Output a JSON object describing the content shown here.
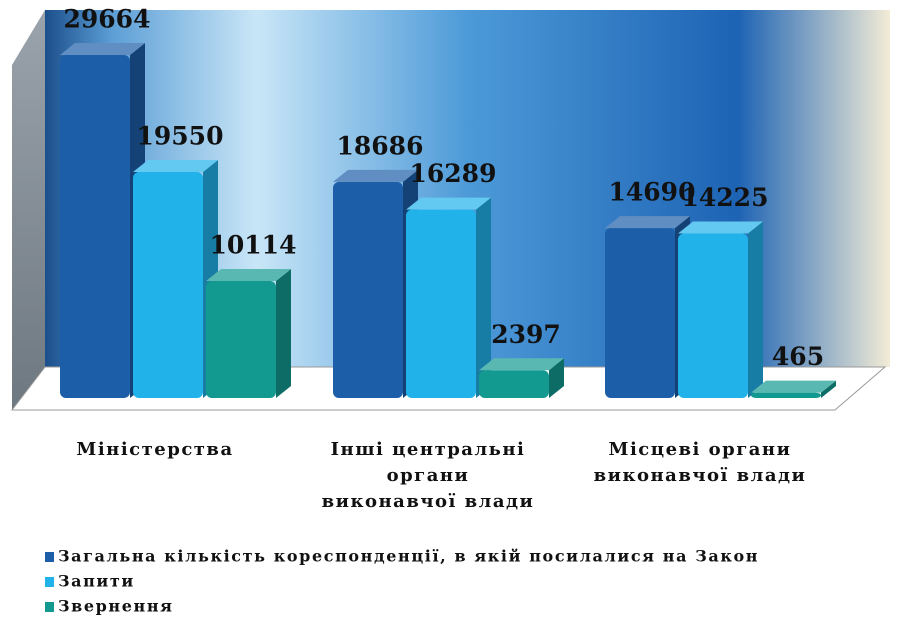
{
  "chart_data": {
    "type": "bar3d",
    "categories": [
      [
        "Міністерства"
      ],
      [
        "Інші центральні",
        "органи",
        "виконавчої влади"
      ],
      [
        "Місцеві органи",
        "виконавчої влади"
      ]
    ],
    "series": [
      {
        "name": "Загальна кількість кореспонденції, в якій посилалися  на Закон",
        "color": "#1c5ea8",
        "values": [
          29664,
          18686,
          14690
        ]
      },
      {
        "name": "Запити",
        "color": "#21b2ea",
        "values": [
          19550,
          16289,
          14225
        ]
      },
      {
        "name": "Звернення",
        "color": "#129a90",
        "values": [
          10114,
          2397,
          465
        ]
      }
    ],
    "legend": "bottom-left"
  }
}
